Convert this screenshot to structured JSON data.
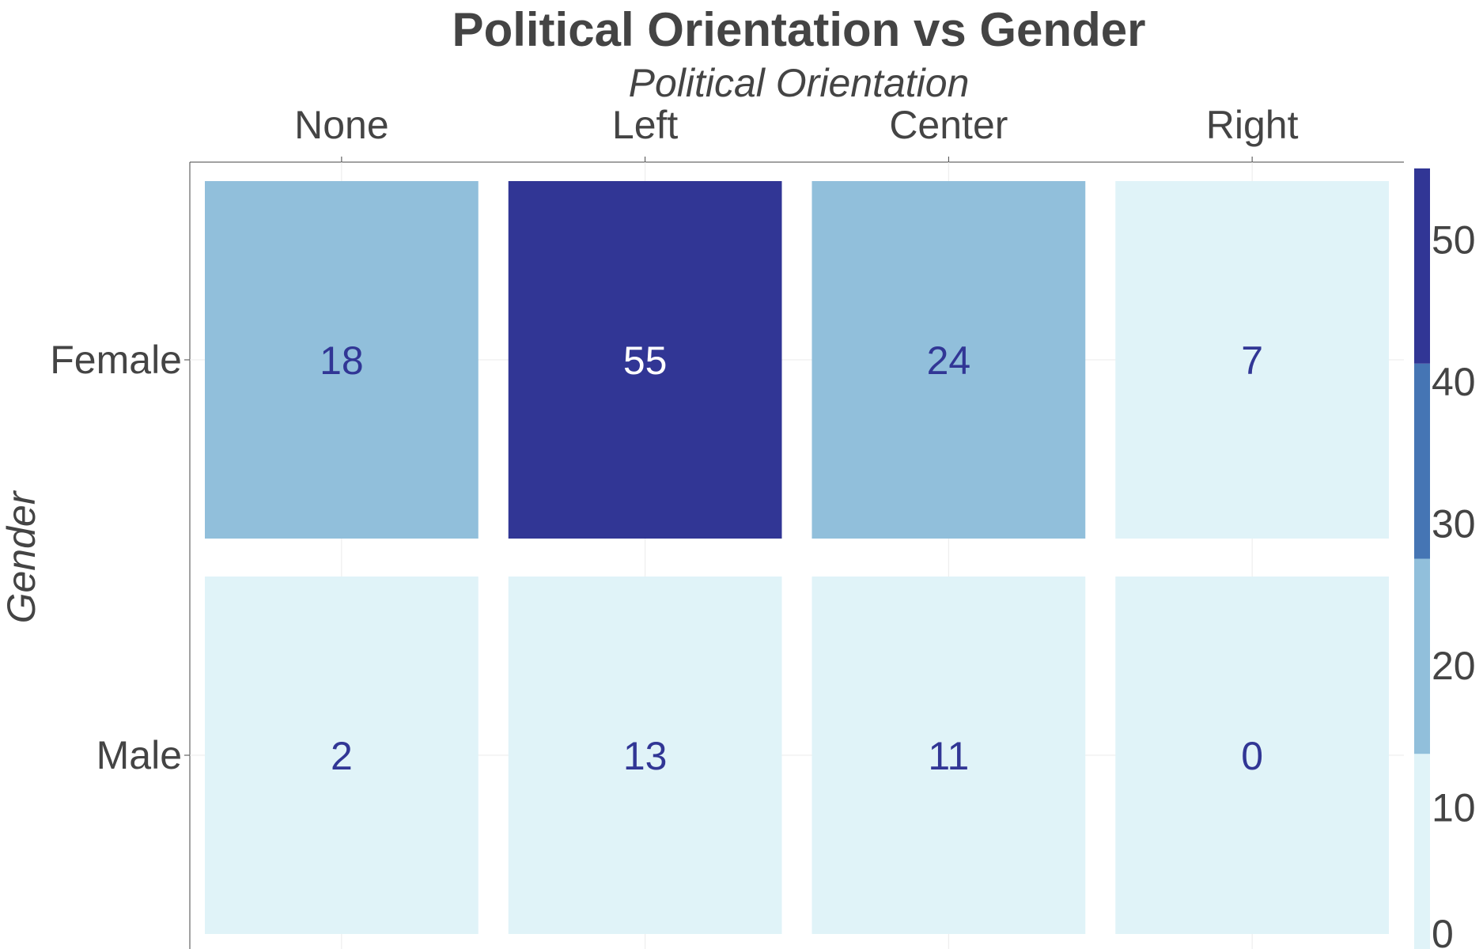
{
  "chart_data": {
    "type": "heatmap",
    "title": "Political Orientation vs Gender",
    "xlabel": "Political Orientation",
    "ylabel": "Gender",
    "x_categories": [
      "None",
      "Left",
      "Center",
      "Right"
    ],
    "y_categories": [
      "Female",
      "Male"
    ],
    "values": [
      [
        18,
        55,
        24,
        7
      ],
      [
        2,
        13,
        11,
        0
      ]
    ],
    "colorbar": {
      "range": [
        0,
        55
      ],
      "ticks": [
        "0",
        "10",
        "20",
        "30",
        "40",
        "50"
      ],
      "bands": [
        {
          "from": 0,
          "to": 13.75,
          "color": "#e0f3f8"
        },
        {
          "from": 13.75,
          "to": 27.5,
          "color": "#91bfdb"
        },
        {
          "from": 27.5,
          "to": 41.25,
          "color": "#4575b4"
        },
        {
          "from": 41.25,
          "to": 55,
          "color": "#313695"
        }
      ]
    },
    "label_colors": {
      "dark": "#313695",
      "light": "#ffffff"
    },
    "x_axis_position": "top",
    "grid": true
  }
}
